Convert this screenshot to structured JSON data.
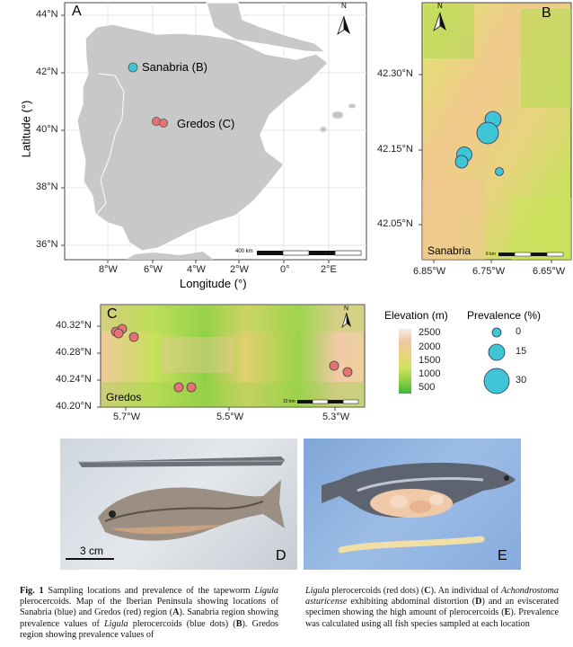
{
  "panelA": {
    "letter": "A",
    "y_ticks": [
      "44°N",
      "42°N",
      "40°N",
      "38°N",
      "36°N"
    ],
    "x_ticks": [
      "8°W",
      "6°W",
      "4°W",
      "2°W",
      "0°",
      "2°E"
    ],
    "ylabel": "Latitude (°)",
    "xlabel": "Longitude (°)",
    "sites": [
      {
        "label": "Sanabria (B)",
        "color": "#3ec5d6"
      },
      {
        "label": "Gredos (C)",
        "color": "#e57373"
      }
    ],
    "scale_label": "400 km",
    "north": "N"
  },
  "panelB": {
    "letter": "B",
    "y_ticks": [
      "42.30°N",
      "42.15°N",
      "42.05°N"
    ],
    "x_ticks": [
      "6.85°W",
      "6.75°W",
      "6.65°W"
    ],
    "region": "Sanabria",
    "scale_label": "6 km",
    "north": "N"
  },
  "panelC": {
    "letter": "C",
    "y_ticks": [
      "40.32°N",
      "40.28°N",
      "40.24°N",
      "40.20°N"
    ],
    "x_ticks": [
      "5.7°W",
      "5.5°W",
      "5.3°W"
    ],
    "region": "Gredos",
    "scale_label": "10 km",
    "north": "N"
  },
  "legend": {
    "elevation_title": "Elevation (m)",
    "elevation_ticks": [
      "2500",
      "2000",
      "1500",
      "1000",
      "500"
    ],
    "prevalence_title": "Prevalence (%)",
    "prevalence_levels": [
      "0",
      "15",
      "30"
    ]
  },
  "photoD": {
    "letter": "D",
    "scale_label": "3 cm"
  },
  "photoE": {
    "letter": "E"
  },
  "caption": {
    "fig": "Fig. 1",
    "left": [
      " Sampling locations and prevalence of the tapeworm ",
      "Ligula",
      " plerocercoids. Map of the Iberian Peninsula showing locations of Sanabria (blue) and Gredos (red) region (",
      "A",
      "). Sanabria region showing prevalence values of ",
      "Ligula",
      " plerocercoids (blue dots) (",
      "B",
      "). Gredos region showing prevalence values of"
    ],
    "right": [
      "Ligula",
      " plerocercoids (red dots) (",
      "C",
      "). An individual of ",
      "Achondrostoma asturicense",
      " exhibiting abdominal distortion (",
      "D",
      ") and an eviscerated specimen showing the high amount of plerocercoids (",
      "E",
      "). Prevalence was calculated using all fish species sampled at each location"
    ]
  }
}
